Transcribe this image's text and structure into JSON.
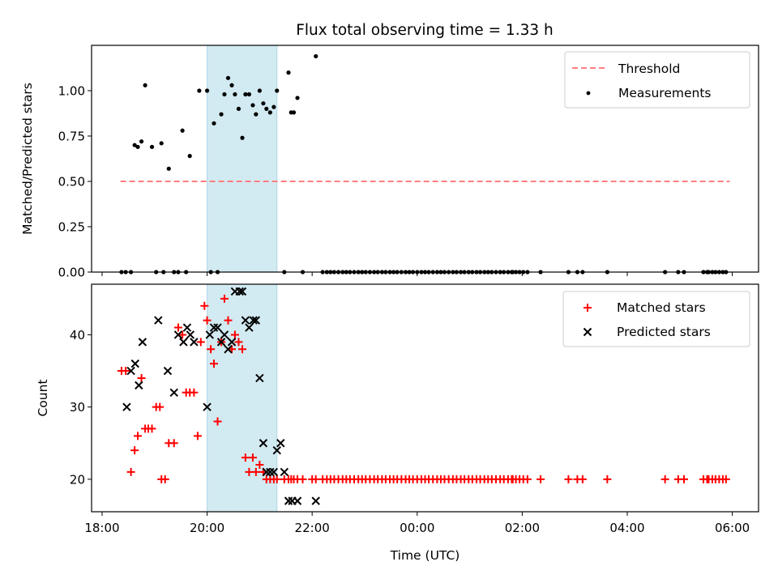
{
  "title": "Flux total observing time = 1.33 h",
  "colors": {
    "threshold": "#ff7f7f",
    "measurement": "#000000",
    "matched": "#ff0000",
    "predicted": "#000000",
    "shade": "#add8e6"
  },
  "x_ticks": [
    {
      "h": 18,
      "label": "18:00"
    },
    {
      "h": 20,
      "label": "20:00"
    },
    {
      "h": 22,
      "label": "22:00"
    },
    {
      "h": 24,
      "label": "00:00"
    },
    {
      "h": 26,
      "label": "02:00"
    },
    {
      "h": 28,
      "label": "04:00"
    },
    {
      "h": 30,
      "label": "06:00"
    }
  ],
  "chart_data": [
    {
      "type": "scatter",
      "panel": "top",
      "xlabel": "",
      "ylabel": "Matched/Predicted stars",
      "xlim_hours": [
        17.8,
        30.5
      ],
      "ylim": [
        0,
        1.25
      ],
      "y_ticks": [
        "0.00",
        "0.25",
        "0.50",
        "0.75",
        "1.00"
      ],
      "legend_position": "top-right",
      "shaded_interval_hours": [
        20.0,
        21.33
      ],
      "threshold": {
        "name": "Threshold",
        "x": [
          18.35,
          29.95
        ],
        "y": 0.5
      },
      "series": [
        {
          "name": "Measurements",
          "x": [
            18.37,
            18.45,
            18.55,
            18.62,
            18.68,
            18.75,
            18.82,
            18.95,
            19.03,
            19.13,
            19.17,
            19.27,
            19.37,
            19.45,
            19.53,
            19.6,
            19.67,
            19.85,
            20.0,
            20.07,
            20.13,
            20.2,
            20.27,
            20.33,
            20.4,
            20.47,
            20.53,
            20.6,
            20.67,
            20.73,
            20.8,
            20.87,
            20.93,
            21.0,
            21.07,
            21.13,
            21.2,
            21.27,
            21.33,
            21.47,
            21.55,
            21.6,
            21.65,
            21.72,
            21.82,
            22.07,
            22.2,
            22.28,
            22.35,
            22.42,
            22.5,
            22.58,
            22.65,
            22.72,
            22.8,
            22.88,
            22.95,
            23.02,
            23.1,
            23.18,
            23.25,
            23.33,
            23.4,
            23.48,
            23.55,
            23.62,
            23.7,
            23.78,
            23.85,
            23.92,
            24.0,
            24.08,
            24.15,
            24.22,
            24.3,
            24.38,
            24.45,
            24.52,
            24.6,
            24.68,
            24.75,
            24.83,
            24.9,
            24.98,
            25.05,
            25.13,
            25.2,
            25.28,
            25.35,
            25.42,
            25.5,
            25.58,
            25.65,
            25.73,
            25.8,
            25.82,
            25.88,
            25.95,
            26.02,
            26.1,
            26.35,
            26.88,
            27.05,
            27.15,
            27.62,
            28.72,
            28.97,
            29.08,
            29.45,
            29.52,
            29.55,
            29.62,
            29.68,
            29.75,
            29.82,
            29.88
          ],
          "y": [
            0,
            0,
            0,
            0.7,
            0.69,
            0.72,
            1.03,
            0.69,
            0,
            0.71,
            0,
            0.57,
            0,
            0,
            0.78,
            0,
            0.64,
            1.0,
            1.0,
            0,
            0.82,
            0,
            0.87,
            0.98,
            1.07,
            1.03,
            0.98,
            0.9,
            0.74,
            0.98,
            0.98,
            0.92,
            0.87,
            1.0,
            0.93,
            0.9,
            0.88,
            0.91,
            1.0,
            0,
            1.1,
            0.88,
            0.88,
            0.96,
            0,
            1.19,
            0,
            0,
            0,
            0,
            0,
            0,
            0,
            0,
            0,
            0,
            0,
            0,
            0,
            0,
            0,
            0,
            0,
            0,
            0,
            0,
            0,
            0,
            0,
            0,
            0,
            0,
            0,
            0,
            0,
            0,
            0,
            0,
            0,
            0,
            0,
            0,
            0,
            0,
            0,
            0,
            0,
            0,
            0,
            0,
            0,
            0,
            0,
            0,
            0,
            0,
            0,
            0,
            0,
            0,
            0,
            0,
            0,
            0,
            0,
            0,
            0,
            0,
            0,
            0,
            0,
            0,
            0,
            0,
            0,
            0
          ]
        }
      ]
    },
    {
      "type": "scatter",
      "panel": "bottom",
      "xlabel": "Time (UTC)",
      "ylabel": "Count",
      "xlim_hours": [
        17.8,
        30.5
      ],
      "ylim": [
        15.5,
        47
      ],
      "y_ticks": [
        "20",
        "30",
        "40"
      ],
      "legend_position": "top-right",
      "shaded_interval_hours": [
        20.0,
        21.33
      ],
      "series": [
        {
          "name": "Matched stars",
          "marker": "+",
          "x": [
            18.37,
            18.45,
            18.55,
            18.62,
            18.68,
            18.75,
            18.82,
            18.88,
            18.95,
            19.03,
            19.1,
            19.13,
            19.2,
            19.27,
            19.37,
            19.45,
            19.53,
            19.6,
            19.67,
            19.75,
            19.82,
            19.88,
            19.95,
            20.0,
            20.07,
            20.13,
            20.2,
            20.27,
            20.33,
            20.4,
            20.47,
            20.53,
            20.6,
            20.67,
            20.73,
            20.8,
            20.87,
            20.93,
            21.0,
            21.07,
            21.13,
            21.2,
            21.27,
            21.33,
            21.47,
            21.55,
            21.6,
            21.65,
            21.72,
            21.82,
            22.0,
            22.07,
            22.2,
            22.28,
            22.35,
            22.42,
            22.5,
            22.58,
            22.65,
            22.72,
            22.8,
            22.88,
            22.95,
            23.02,
            23.1,
            23.18,
            23.25,
            23.33,
            23.4,
            23.48,
            23.55,
            23.62,
            23.7,
            23.78,
            23.85,
            23.92,
            24.0,
            24.08,
            24.15,
            24.22,
            24.3,
            24.38,
            24.45,
            24.52,
            24.6,
            24.68,
            24.75,
            24.83,
            24.9,
            24.98,
            25.05,
            25.13,
            25.2,
            25.28,
            25.35,
            25.42,
            25.5,
            25.58,
            25.65,
            25.73,
            25.8,
            25.82,
            25.88,
            25.95,
            26.02,
            26.1,
            26.35,
            26.88,
            27.05,
            27.15,
            27.62,
            28.72,
            28.97,
            29.08,
            29.45,
            29.52,
            29.55,
            29.62,
            29.68,
            29.75,
            29.82,
            29.88
          ],
          "y": [
            35,
            35,
            21,
            24,
            26,
            34,
            27,
            27,
            27,
            30,
            30,
            20,
            20,
            25,
            25,
            41,
            40,
            32,
            32,
            32,
            26,
            39,
            44,
            42,
            38,
            36,
            28,
            39,
            45,
            42,
            38,
            40,
            39,
            38,
            23,
            21,
            23,
            21,
            22,
            21,
            20,
            20,
            20,
            20,
            20,
            20,
            20,
            20,
            20,
            20,
            20,
            20,
            20,
            20,
            20,
            20,
            20,
            20,
            20,
            20,
            20,
            20,
            20,
            20,
            20,
            20,
            20,
            20,
            20,
            20,
            20,
            20,
            20,
            20,
            20,
            20,
            20,
            20,
            20,
            20,
            20,
            20,
            20,
            20,
            20,
            20,
            20,
            20,
            20,
            20,
            20,
            20,
            20,
            20,
            20,
            20,
            20,
            20,
            20,
            20,
            20,
            20,
            20,
            20,
            20,
            20,
            20,
            20,
            20,
            20,
            20,
            20,
            20,
            20,
            20,
            20,
            20,
            20,
            20,
            20,
            20,
            20
          ]
        },
        {
          "name": "Predicted stars",
          "marker": "x",
          "x": [
            18.47,
            18.55,
            18.63,
            18.7,
            18.77,
            19.07,
            19.25,
            19.37,
            19.45,
            19.55,
            19.62,
            19.68,
            19.75,
            20.0,
            20.05,
            20.13,
            20.2,
            20.27,
            20.33,
            20.4,
            20.47,
            20.53,
            20.62,
            20.67,
            20.73,
            20.8,
            20.88,
            20.93,
            21.0,
            21.07,
            21.13,
            21.2,
            21.27,
            21.33,
            21.4,
            21.47,
            21.55,
            21.62,
            21.72,
            22.07
          ],
          "y": [
            30,
            35,
            36,
            33,
            39,
            42,
            35,
            32,
            40,
            39,
            41,
            40,
            39,
            30,
            40,
            41,
            41,
            39,
            40,
            38,
            39,
            46,
            46,
            46,
            42,
            41,
            42,
            42,
            34,
            25,
            21,
            21,
            21,
            24,
            25,
            21,
            17,
            17,
            17,
            17
          ]
        }
      ]
    }
  ]
}
